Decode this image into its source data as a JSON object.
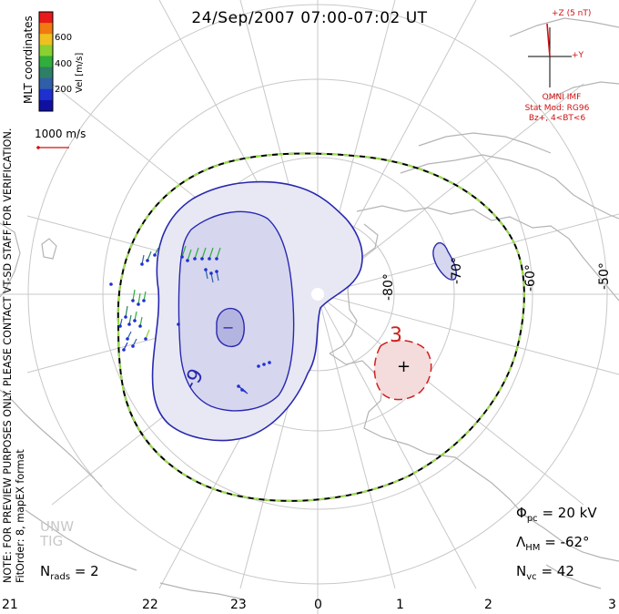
{
  "title": "24/Sep/2007 07:00-07:02 UT",
  "colorbar": {
    "label": "Vel [m/s]",
    "ticks": [
      "600",
      "400",
      "200"
    ],
    "colors": [
      "#e81a1a",
      "#f07a10",
      "#f0c020",
      "#8ad030",
      "#2fae3c",
      "#2e7f66",
      "#2f5fa8",
      "#1e30d0",
      "#1010a0"
    ]
  },
  "coords_label": "MLT coordinates",
  "scale_vector_label": "1000 m/s",
  "side_note": "NOTE: FOR PREVIEW PURPOSES ONLY. PLEASE CONTACT VT-SD STAFF FOR VERIFICATION.",
  "fit_label": "FitOrder: 8, mapEX format",
  "imf": {
    "z_label": "+Z (5 nT)",
    "y_label": "+Y",
    "title": "OMNI IMF",
    "model": "Stat Mod: RG96",
    "bz": "Bz+, 4<BT<6"
  },
  "lat_labels": [
    "-80°",
    "-70°",
    "-60°",
    "-50°"
  ],
  "mlt_labels": [
    "21",
    "22",
    "23",
    "0",
    "1",
    "2",
    "3"
  ],
  "contours": {
    "negative_label": "-9",
    "minus_sign": "−",
    "positive_label": "3",
    "plus_sign": "+"
  },
  "stats": {
    "phi_symbol": "Φ",
    "phi_sub": "pc",
    "phi_value": "= 20 kV",
    "lambda_symbol": "Λ",
    "lambda_sub": "HM",
    "lambda_value": "= -62°",
    "nvc_symbol": "N",
    "nvc_sub": "vc",
    "nvc_value": "= 42",
    "nrads_symbol": "N",
    "nrads_sub": "rads",
    "nrads_value": "= 2"
  },
  "watermark": [
    "UNW",
    "TIG"
  ],
  "colors": {
    "negative_cell": "#2828b0",
    "positive_cell": "#d02020",
    "coastline": "#b4b4b4",
    "grid": "#c8c8c8",
    "hmb_dash": "#9be04a"
  }
}
